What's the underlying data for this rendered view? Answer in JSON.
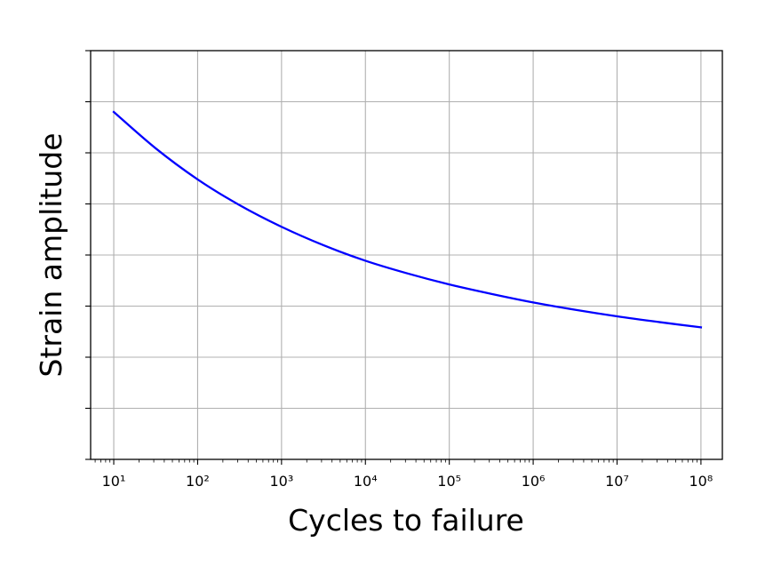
{
  "chart_data": {
    "type": "line",
    "title": "",
    "xlabel": "Cycles to failure",
    "ylabel": "Strain amplitude",
    "x_scale": "log",
    "xlim": [
      5.3,
      180000000
    ],
    "x_ticks": [
      {
        "value": 10,
        "label": "10¹"
      },
      {
        "value": 100,
        "label": "10²"
      },
      {
        "value": 1000,
        "label": "10³"
      },
      {
        "value": 10000,
        "label": "10⁴"
      },
      {
        "value": 100000,
        "label": "10⁵"
      },
      {
        "value": 1000000,
        "label": "10⁶"
      },
      {
        "value": 10000000,
        "label": "10⁷"
      },
      {
        "value": 100000000,
        "label": "10⁸"
      }
    ],
    "y_tick_labels_shown": false,
    "grid": true,
    "series": [
      {
        "color": "#0000ff",
        "x": [
          10,
          31.6,
          100,
          316,
          1000,
          3162,
          10000,
          31623,
          100000,
          316228,
          1000000,
          3162278,
          10000000,
          31622777,
          100000000
        ],
        "y": [
          0.85,
          0.761,
          0.685,
          0.622,
          0.569,
          0.524,
          0.486,
          0.455,
          0.428,
          0.405,
          0.384,
          0.366,
          0.35,
          0.336,
          0.323
        ]
      }
    ],
    "ylim": [
      0.0,
      1.0
    ]
  }
}
